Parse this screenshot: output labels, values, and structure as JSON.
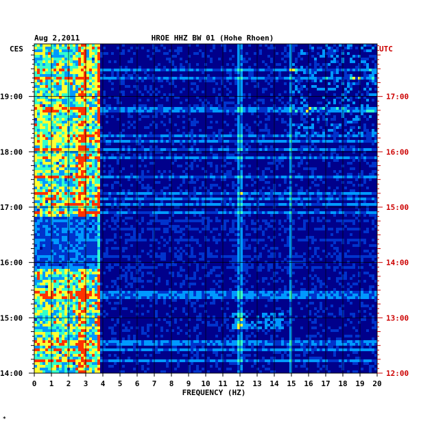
{
  "chart_data": {
    "type": "heatmap",
    "date": "Aug 2,2011",
    "title": "HROE HHZ BW 01 (Hohe Rhoen)",
    "left_zone": "CES",
    "right_zone": "UTC",
    "xlabel": "FREQUENCY (HZ)",
    "xlim": [
      0,
      20
    ],
    "x_ticks": [
      "0",
      "1",
      "2",
      "3",
      "4",
      "5",
      "6",
      "7",
      "8",
      "9",
      "10",
      "11",
      "12",
      "13",
      "14",
      "15",
      "16",
      "17",
      "18",
      "19",
      "20"
    ],
    "y_range_hours_ces": [
      14.0,
      19.95
    ],
    "y_ticks_left": [
      {
        "label": "19:00",
        "hour": 19
      },
      {
        "label": "18:00",
        "hour": 18
      },
      {
        "label": "17:00",
        "hour": 17
      },
      {
        "label": "16:00",
        "hour": 16
      },
      {
        "label": "15:00",
        "hour": 15
      },
      {
        "label": "14:00",
        "hour": 14
      }
    ],
    "y_ticks_right": [
      {
        "label": "17:00",
        "hour": 19
      },
      {
        "label": "16:00",
        "hour": 18
      },
      {
        "label": "15:00",
        "hour": 17
      },
      {
        "label": "14:00",
        "hour": 16
      },
      {
        "label": "13:00",
        "hour": 15
      },
      {
        "label": "12:00",
        "hour": 14
      }
    ],
    "grid": true,
    "colormap": [
      "#00008b",
      "#0033cc",
      "#0099ff",
      "#33ffcc",
      "#ffff33",
      "#ff3300"
    ],
    "features": {
      "low_freq_band_hz": [
        0,
        3.8
      ],
      "spectral_lines_hz": [
        3.8,
        12.0,
        15.0
      ],
      "quiet_interval_hours": [
        15.9,
        16.85
      ],
      "event_hours": [
        14.8,
        15.1
      ]
    }
  },
  "footer_mark": "*"
}
